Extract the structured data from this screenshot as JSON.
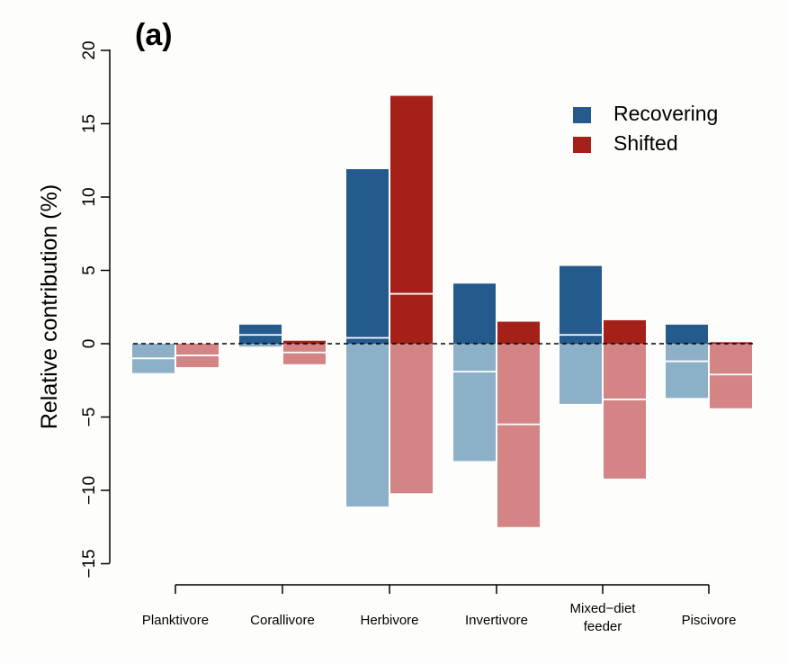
{
  "chart_data": {
    "type": "bar",
    "panel_label": "(a)",
    "title": "",
    "xlabel": "",
    "ylabel": "Relative contribution (%)",
    "ylim": [
      -15,
      20
    ],
    "yticks": [
      -15,
      -10,
      -5,
      0,
      5,
      10,
      15,
      20
    ],
    "categories": [
      "Planktivore",
      "Corallivore",
      "Herbivore",
      "Invertivore",
      "Mixed−diet feeder",
      "Piscivore"
    ],
    "category_lines": [
      [
        "Planktivore"
      ],
      [
        "Corallivore"
      ],
      [
        "Herbivore"
      ],
      [
        "Invertivore"
      ],
      [
        "Mixed−diet",
        "feeder"
      ],
      [
        "Piscivore"
      ]
    ],
    "grid": false,
    "zero_line": "dashed",
    "legend_position": "top-right",
    "series": [
      {
        "name": "Recovering",
        "color": "#255a8c",
        "light_color": "#8db0c9",
        "positive_total": [
          0.0,
          1.3,
          11.9,
          4.1,
          5.3,
          1.3
        ],
        "positive_divider": [
          null,
          0.6,
          0.4,
          null,
          0.6,
          null
        ],
        "negative_total": [
          -2.0,
          -0.2,
          -11.1,
          -8.0,
          -4.1,
          -3.7
        ],
        "negative_divider": [
          -1.0,
          null,
          null,
          -1.9,
          null,
          -1.2
        ]
      },
      {
        "name": "Shifted",
        "color": "#a52019",
        "light_color": "#d48485",
        "positive_total": [
          0.0,
          0.2,
          16.9,
          1.5,
          1.6,
          0.1
        ],
        "positive_divider": [
          null,
          null,
          3.4,
          null,
          null,
          null
        ],
        "negative_total": [
          -1.6,
          -1.4,
          -10.2,
          -12.5,
          -9.2,
          -4.4
        ],
        "negative_divider": [
          -0.8,
          -0.6,
          null,
          -5.5,
          -3.8,
          -2.1
        ]
      }
    ]
  }
}
